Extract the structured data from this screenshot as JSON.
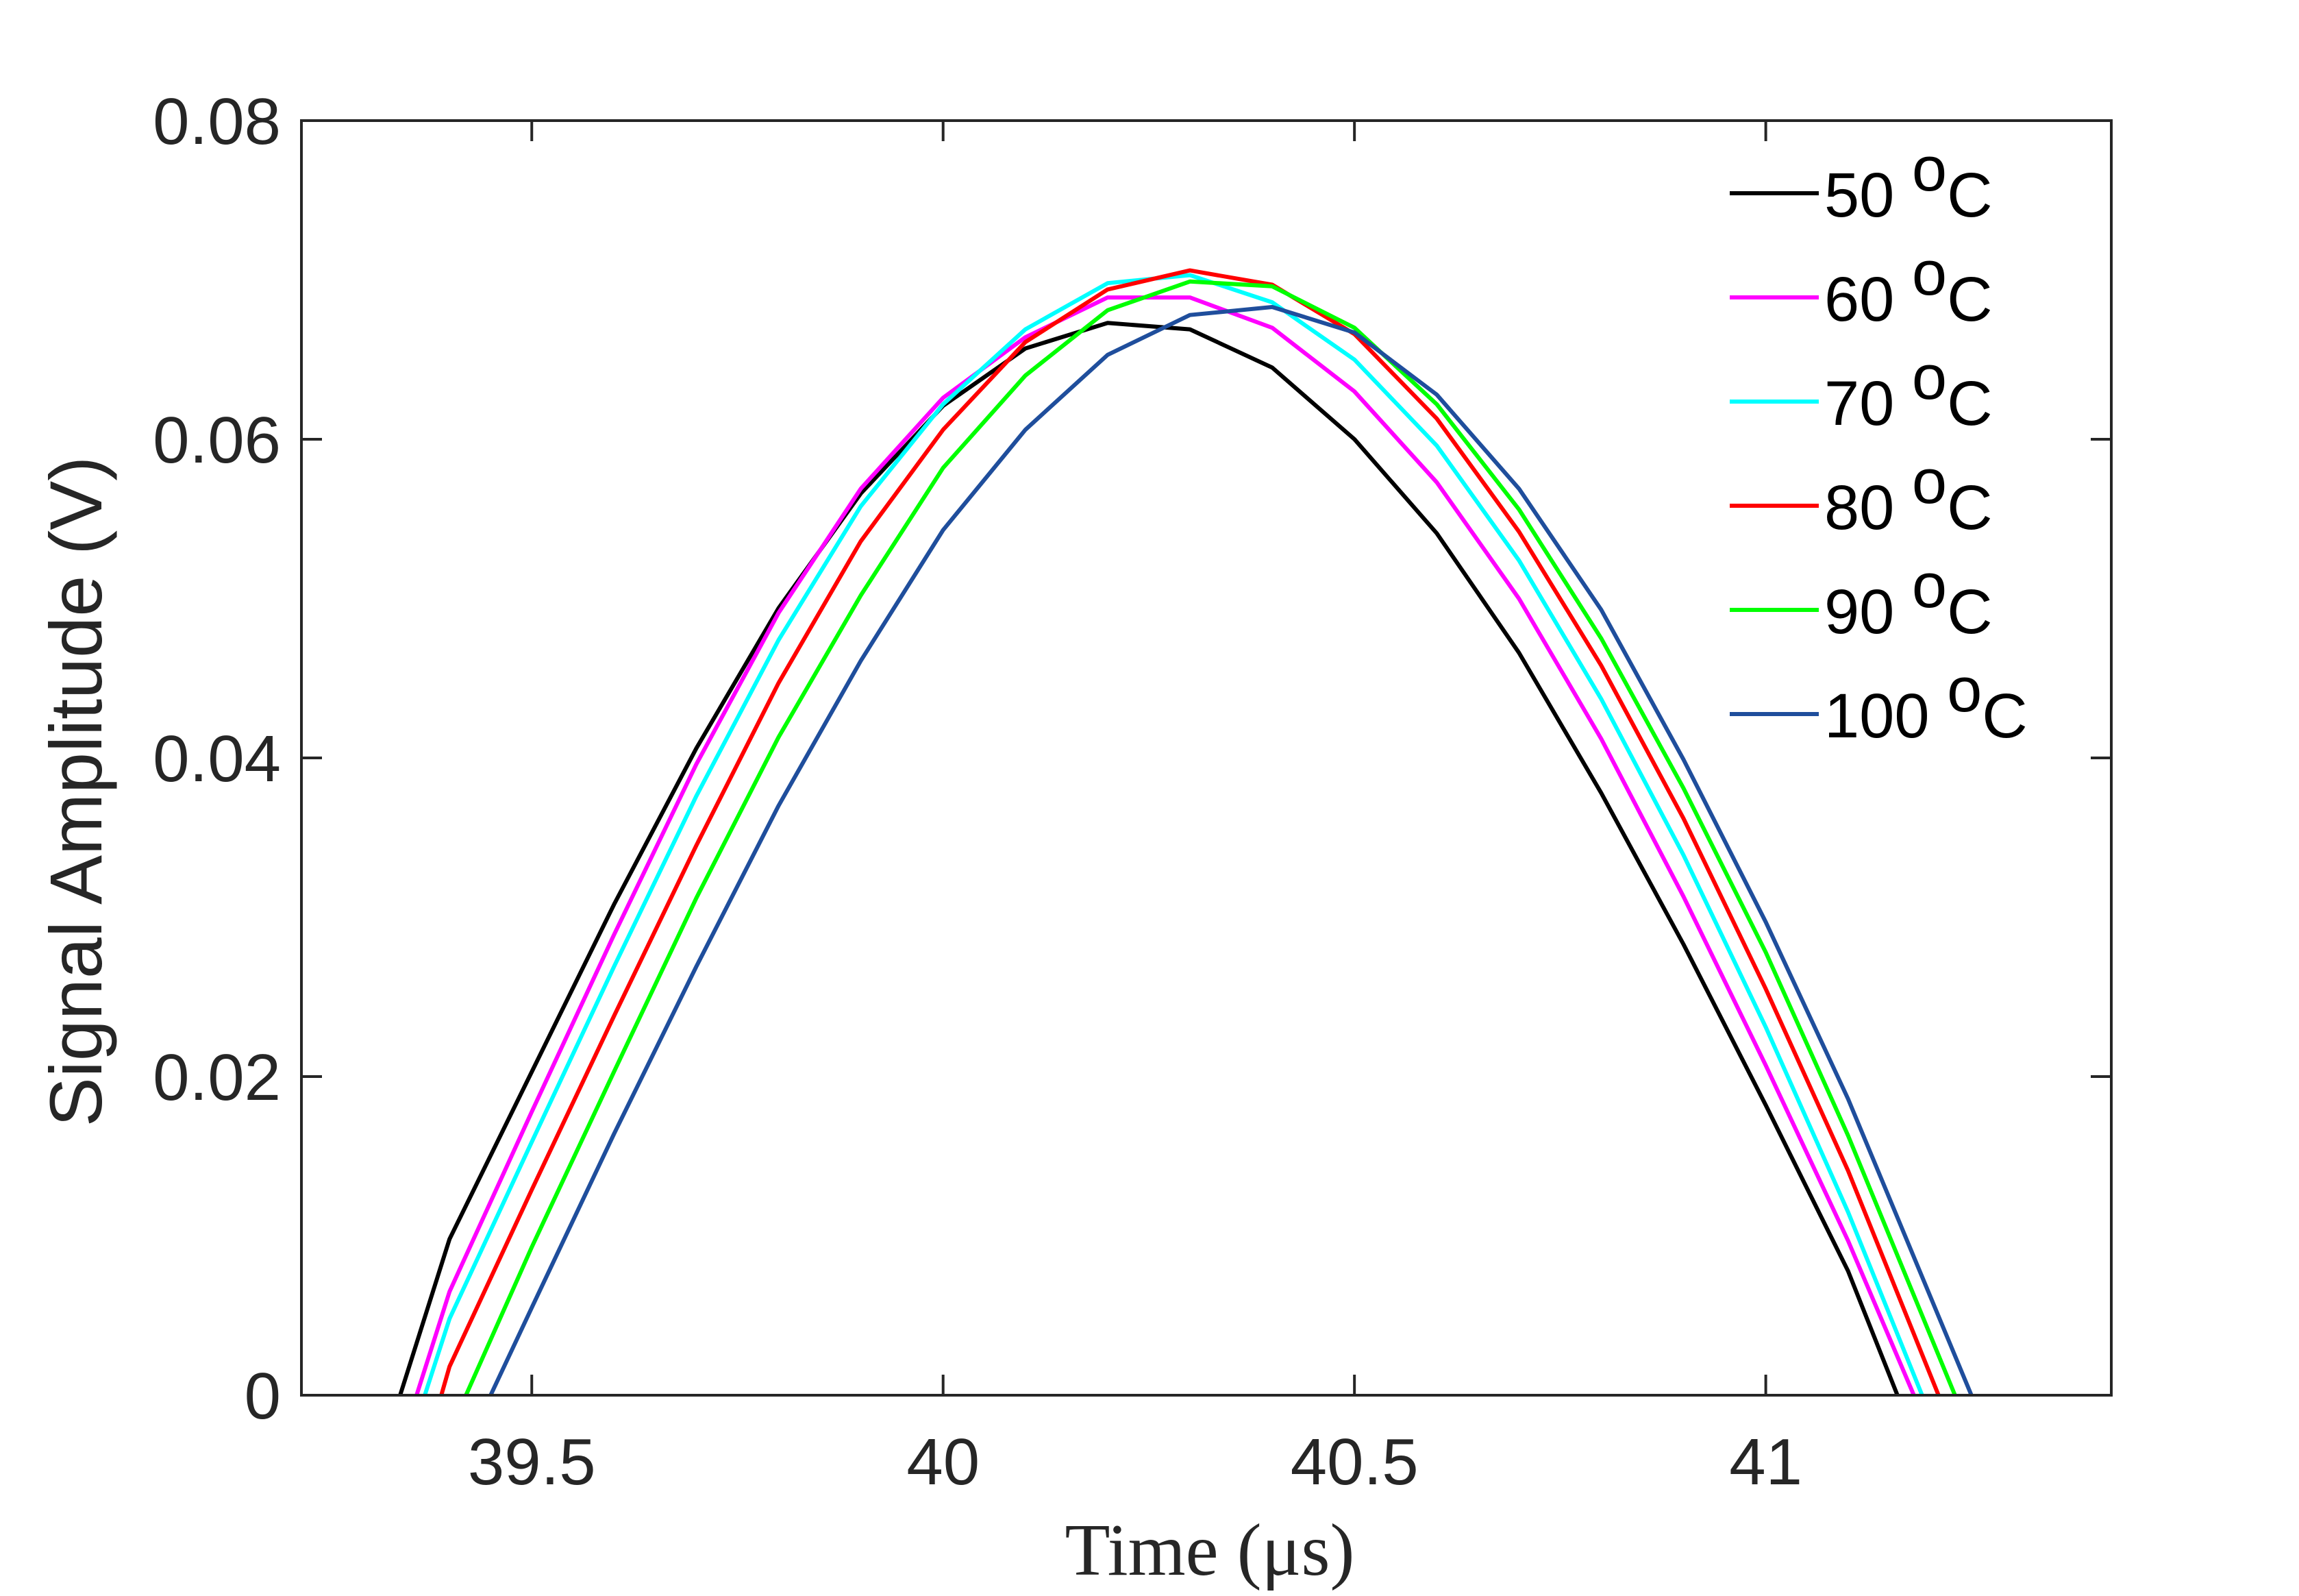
{
  "chart_data": {
    "type": "line",
    "title": "",
    "xlabel": "Time (μs)",
    "ylabel": "Signal Amplitude (V)",
    "xlim": [
      39.22,
      41.42
    ],
    "ylim": [
      0,
      0.08
    ],
    "xticks": [
      39.5,
      40,
      40.5,
      41
    ],
    "xtick_labels": [
      "39.5",
      "40",
      "40.5",
      "41"
    ],
    "yticks": [
      0,
      0.02,
      0.04,
      0.06,
      0.08
    ],
    "ytick_labels": [
      "0",
      "0.02",
      "0.04",
      "0.06",
      "0.08"
    ],
    "grid": false,
    "legend_position": "top-right",
    "legend_unit_sup": "o",
    "legend_unit_c": "C",
    "series": [
      {
        "name": "50",
        "color": "#000000",
        "x": [
          39.34,
          39.4,
          39.5,
          39.6,
          39.7,
          39.8,
          39.9,
          40.0,
          40.1,
          40.2,
          40.3,
          40.4,
          40.5,
          40.6,
          40.7,
          40.8,
          40.9,
          41.0,
          41.1,
          41.16
        ],
        "y": [
          0,
          0.0098,
          0.0203,
          0.0308,
          0.0406,
          0.0494,
          0.0566,
          0.0621,
          0.0657,
          0.0673,
          0.0669,
          0.0645,
          0.06,
          0.0541,
          0.0466,
          0.0378,
          0.0283,
          0.0182,
          0.0078,
          0
        ]
      },
      {
        "name": "60",
        "color": "#FF00FF",
        "x": [
          39.36,
          39.4,
          39.5,
          39.6,
          39.7,
          39.8,
          39.9,
          40.0,
          40.1,
          40.2,
          40.3,
          40.4,
          40.5,
          40.6,
          40.7,
          40.8,
          40.9,
          41.0,
          41.1,
          41.18
        ],
        "y": [
          0,
          0.0065,
          0.0178,
          0.0289,
          0.0396,
          0.0491,
          0.0569,
          0.0626,
          0.0664,
          0.0689,
          0.0689,
          0.067,
          0.063,
          0.0573,
          0.05,
          0.0412,
          0.0313,
          0.0207,
          0.0097,
          0
        ]
      },
      {
        "name": "70",
        "color": "#00FFFF",
        "x": [
          39.37,
          39.4,
          39.5,
          39.6,
          39.7,
          39.8,
          39.9,
          40.0,
          40.1,
          40.2,
          40.3,
          40.4,
          40.5,
          40.6,
          40.7,
          40.8,
          40.9,
          41.0,
          41.1,
          41.19
        ],
        "y": [
          0,
          0.0048,
          0.0159,
          0.0269,
          0.0376,
          0.0474,
          0.0558,
          0.0622,
          0.0669,
          0.0698,
          0.0703,
          0.0686,
          0.065,
          0.0596,
          0.0524,
          0.0437,
          0.0339,
          0.0231,
          0.0115,
          0
        ]
      },
      {
        "name": "80",
        "color": "#FF0000",
        "x": [
          39.39,
          39.4,
          39.5,
          39.6,
          39.7,
          39.8,
          39.9,
          40.0,
          40.1,
          40.2,
          40.3,
          40.4,
          40.5,
          40.6,
          40.7,
          40.8,
          40.9,
          41.0,
          41.1,
          41.21
        ],
        "y": [
          0,
          0.0018,
          0.0129,
          0.0238,
          0.0345,
          0.0447,
          0.0536,
          0.0606,
          0.0661,
          0.0694,
          0.0706,
          0.0697,
          0.0666,
          0.0613,
          0.0542,
          0.0458,
          0.0362,
          0.0255,
          0.0141,
          0
        ]
      },
      {
        "name": "90",
        "color": "#00FF00",
        "x": [
          39.42,
          39.5,
          39.6,
          39.7,
          39.8,
          39.9,
          40.0,
          40.1,
          40.2,
          40.3,
          40.4,
          40.5,
          40.6,
          40.7,
          40.8,
          40.9,
          41.0,
          41.1,
          41.23
        ],
        "y": [
          0,
          0.0093,
          0.0203,
          0.0312,
          0.0413,
          0.0502,
          0.0582,
          0.064,
          0.0681,
          0.0699,
          0.0696,
          0.067,
          0.0622,
          0.0556,
          0.0475,
          0.0381,
          0.0278,
          0.0163,
          0
        ]
      },
      {
        "name": "100",
        "color": "#1F4E9C",
        "x": [
          39.45,
          39.5,
          39.6,
          39.7,
          39.8,
          39.9,
          40.0,
          40.1,
          40.2,
          40.3,
          40.4,
          40.5,
          40.6,
          40.7,
          40.8,
          40.9,
          41.0,
          41.1,
          41.25
        ],
        "y": [
          0,
          0.0055,
          0.0164,
          0.0269,
          0.037,
          0.0461,
          0.0543,
          0.0606,
          0.0653,
          0.0678,
          0.0683,
          0.0667,
          0.0628,
          0.0569,
          0.0493,
          0.0399,
          0.0297,
          0.0186,
          0
        ]
      }
    ]
  }
}
